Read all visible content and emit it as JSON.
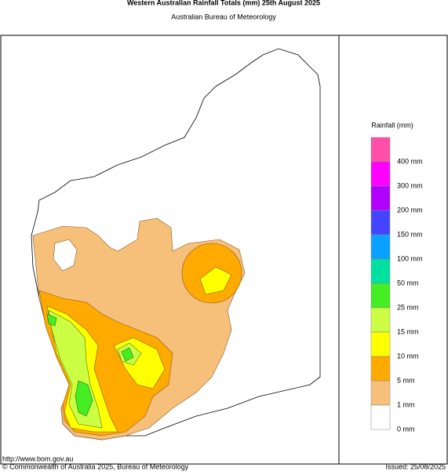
{
  "header": {
    "title": "Western Australian Rainfall Totals (mm) 25th August 2025",
    "subtitle": "Australian Bureau of Meteorology"
  },
  "legend": {
    "title": "Rainfall (mm)",
    "colors": [
      "#ff4fa8",
      "#ff00ff",
      "#b000ff",
      "#4444ff",
      "#0aa0ff",
      "#00e0a0",
      "#44ee22",
      "#ccff44",
      "#ffff00",
      "#ffaa00",
      "#f7c07a",
      "#ffffff"
    ],
    "labels": [
      "400 mm",
      "300 mm",
      "200 mm",
      "150 mm",
      "100 mm",
      "50 mm",
      "25 mm",
      "15 mm",
      "10 mm",
      "5 mm",
      "1 mm",
      "0 mm"
    ]
  },
  "footer": {
    "url": "http://www.bom.gov.au",
    "copyright": "© Commonwealth of Australia 2025, Bureau of Meteorology",
    "issued": "Issued: 25/08/2025"
  }
}
